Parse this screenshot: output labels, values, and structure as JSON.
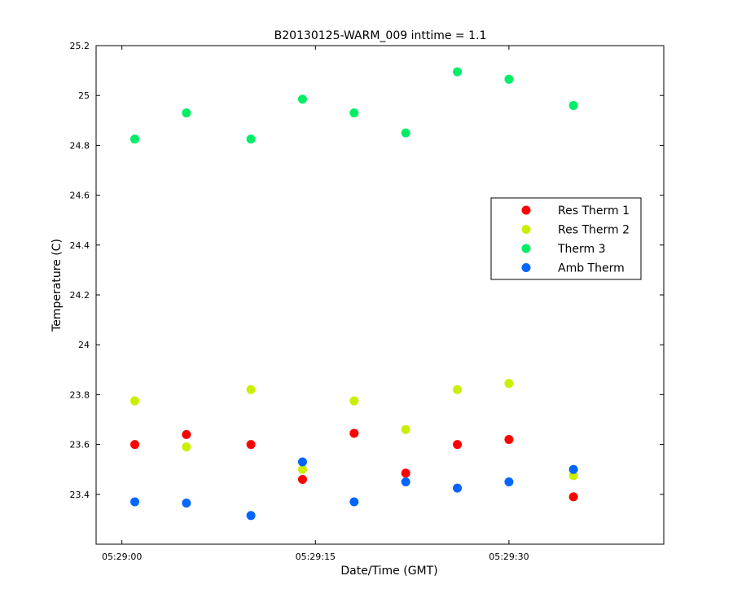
{
  "chart_data": {
    "type": "scatter",
    "title": "B20130125-WARM_009 inttime = 1.1",
    "xlabel": "Date/Time (GMT)",
    "ylabel": "Temperature (C)",
    "x_unit": "time (HH:MM:SS)",
    "xlim": [
      "05:28:58",
      "05:29:42"
    ],
    "ylim": [
      23.2,
      25.2
    ],
    "x_ticks": [
      {
        "value": "05:29:00",
        "label": "05:29:00"
      },
      {
        "value": "05:29:15",
        "label": "05:29:15"
      },
      {
        "value": "05:29:30",
        "label": "05:29:30"
      }
    ],
    "y_ticks": [
      {
        "value": 23.4,
        "label": "23.4"
      },
      {
        "value": 23.6,
        "label": "23.6"
      },
      {
        "value": 23.8,
        "label": "23.8"
      },
      {
        "value": 24.0,
        "label": "24"
      },
      {
        "value": 24.2,
        "label": "24.2"
      },
      {
        "value": 24.4,
        "label": "24.4"
      },
      {
        "value": 24.6,
        "label": "24.6"
      },
      {
        "value": 24.8,
        "label": "24.8"
      },
      {
        "value": 25.0,
        "label": "25"
      },
      {
        "value": 25.2,
        "label": "25.2"
      }
    ],
    "grid": false,
    "legend_position": "right, upper-middle",
    "x": [
      "05:29:01",
      "05:29:05",
      "05:29:10",
      "05:29:14",
      "05:29:18",
      "05:29:22",
      "05:29:26",
      "05:29:30",
      "05:29:35"
    ],
    "series": [
      {
        "name": "Res Therm 1",
        "color": "#ff0000",
        "values": [
          23.6,
          23.64,
          23.6,
          23.46,
          23.645,
          23.485,
          23.6,
          23.62,
          23.39
        ]
      },
      {
        "name": "Res Therm 2",
        "color": "#ccee00",
        "values": [
          23.775,
          23.59,
          23.82,
          23.5,
          23.775,
          23.66,
          23.82,
          23.845,
          23.475
        ]
      },
      {
        "name": "Therm 3",
        "color": "#00ee66",
        "values": [
          24.825,
          24.93,
          24.825,
          24.985,
          24.93,
          24.85,
          25.095,
          25.065,
          24.96
        ]
      },
      {
        "name": "Amb Therm",
        "color": "#0066ff",
        "values": [
          23.37,
          23.365,
          23.315,
          23.53,
          23.37,
          23.45,
          23.425,
          23.45,
          23.5
        ]
      }
    ]
  }
}
